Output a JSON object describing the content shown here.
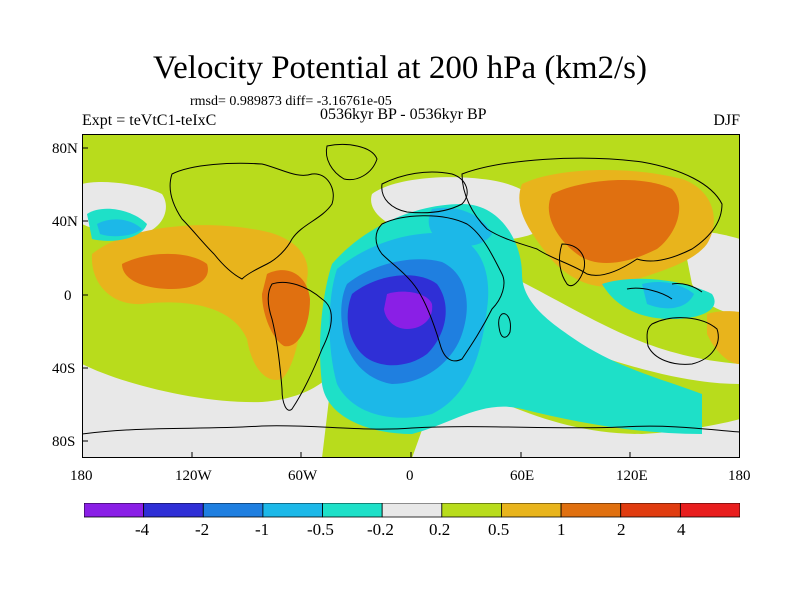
{
  "title": "Velocity Potential at 200 hPa (km2/s)",
  "stats": "rmsd= 0.989873  diff= -3.16761e-05",
  "experiment": "Expt = teVtC1-teIxC",
  "period": "0536kyr BP - 0536kyr BP",
  "season": "DJF",
  "lat_labels": [
    "80N",
    "40N",
    "0",
    "40S",
    "80S"
  ],
  "lon_labels": [
    "180",
    "120W",
    "60W",
    "0",
    "60E",
    "120E",
    "180"
  ],
  "colorbar": {
    "labels": [
      "-4",
      "-2",
      "-1",
      "-0.5",
      "-0.2",
      "0.2",
      "0.5",
      "1",
      "2",
      "4"
    ],
    "colors": [
      "#8a1fe6",
      "#2f2fd6",
      "#1f7fe0",
      "#1cb8e8",
      "#1ee0c8",
      "#e8e8e8",
      "#b8dc1c",
      "#e8b41c",
      "#e07010",
      "#e03c10",
      "#e81e1e"
    ]
  },
  "chart_data": {
    "type": "heatmap",
    "title": "Velocity Potential at 200 hPa (km2/s)",
    "variable": "Velocity Potential at 200 hPa",
    "units": "km2/s",
    "season": "DJF",
    "levels": [
      -4,
      -2,
      -1,
      -0.5,
      -0.2,
      0.2,
      0.5,
      1,
      2,
      4
    ],
    "xrange": [
      -180,
      180
    ],
    "yrange": [
      -90,
      90
    ],
    "regions": [
      {
        "name": "South Atlantic minimum",
        "lon": -15,
        "lat": -20,
        "value": "< -4"
      },
      {
        "name": "Asian / North Pacific maximum",
        "lon": 110,
        "lat": 40,
        "value": "1 to 2"
      },
      {
        "name": "Eastern Pacific / South America maximum",
        "lon": -90,
        "lat": 5,
        "value": "1 to 2"
      }
    ]
  }
}
